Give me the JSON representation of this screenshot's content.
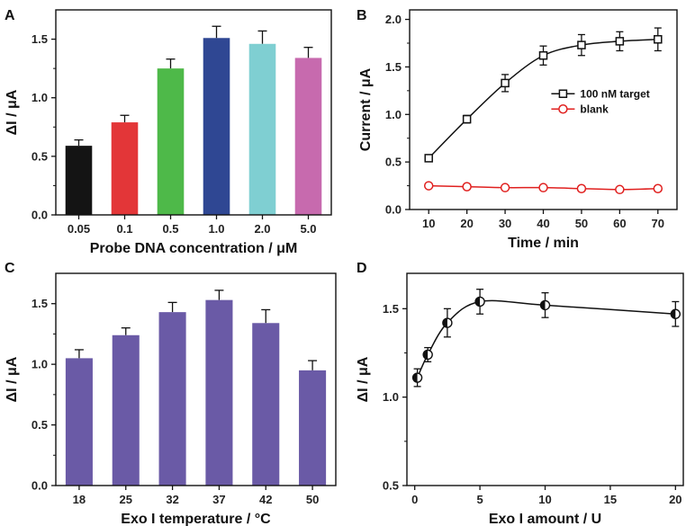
{
  "chart_data": [
    {
      "panel": "A",
      "type": "bar",
      "xlabel": "Probe DNA concentration / μM",
      "ylabel": "ΔI / μA",
      "categories": [
        "0.05",
        "0.1",
        "0.5",
        "1.0",
        "2.0",
        "5.0"
      ],
      "values": [
        0.59,
        0.79,
        1.25,
        1.51,
        1.46,
        1.34
      ],
      "errors": [
        0.05,
        0.06,
        0.08,
        0.1,
        0.11,
        0.09
      ],
      "colors": [
        "#141414",
        "#e33638",
        "#4eb949",
        "#2f4793",
        "#7fcfd2",
        "#c76aae"
      ],
      "ylim": [
        0,
        1.75
      ],
      "yticks": [
        "0.0",
        "0.5",
        "1.0",
        "1.5"
      ]
    },
    {
      "panel": "B",
      "type": "line",
      "xlabel": "Time / min",
      "ylabel": "Current / μA",
      "x": [
        10,
        20,
        30,
        40,
        50,
        60,
        70
      ],
      "series": [
        {
          "name": "100 nM target",
          "values": [
            0.54,
            0.95,
            1.33,
            1.62,
            1.73,
            1.77,
            1.79
          ],
          "errors": [
            0.03,
            0.04,
            0.09,
            0.1,
            0.11,
            0.1,
            0.12
          ],
          "color": "#111111",
          "marker": "square"
        },
        {
          "name": "blank",
          "values": [
            0.25,
            0.24,
            0.23,
            0.23,
            0.22,
            0.21,
            0.22
          ],
          "errors": [
            0.02,
            0.02,
            0.02,
            0.02,
            0.02,
            0.02,
            0.02
          ],
          "color": "#e0201f",
          "marker": "circle"
        }
      ],
      "xlim": [
        5,
        75
      ],
      "ylim": [
        0,
        2.1
      ],
      "xticks": [
        "10",
        "20",
        "30",
        "40",
        "50",
        "60",
        "70"
      ],
      "yticks": [
        "0.0",
        "0.5",
        "1.0",
        "1.5",
        "2.0"
      ]
    },
    {
      "panel": "C",
      "type": "bar",
      "xlabel": "Exo I temperature / °C",
      "ylabel": "ΔI / μA",
      "categories": [
        "18",
        "25",
        "32",
        "37",
        "42",
        "50"
      ],
      "values": [
        1.05,
        1.24,
        1.43,
        1.53,
        1.34,
        0.95
      ],
      "errors": [
        0.07,
        0.06,
        0.08,
        0.08,
        0.11,
        0.08
      ],
      "colors": [
        "#6a5aa6",
        "#6a5aa6",
        "#6a5aa6",
        "#6a5aa6",
        "#6a5aa6",
        "#6a5aa6"
      ],
      "ylim": [
        0,
        1.75
      ],
      "yticks": [
        "0.0",
        "0.5",
        "1.0",
        "1.5"
      ]
    },
    {
      "panel": "D",
      "type": "scatter",
      "xlabel": "Exo I amount / U",
      "ylabel": "ΔI / μA",
      "x": [
        0.2,
        1,
        2.5,
        5,
        10,
        20
      ],
      "series": [
        {
          "name": "ΔI",
          "values": [
            1.11,
            1.24,
            1.42,
            1.54,
            1.52,
            1.47
          ],
          "errors": [
            0.05,
            0.04,
            0.08,
            0.07,
            0.07,
            0.07
          ],
          "color": "#111111",
          "marker": "half-circle"
        }
      ],
      "xlim": [
        -0.6,
        20.6
      ],
      "ylim": [
        0.5,
        1.7
      ],
      "xticks": [
        "0",
        "5",
        "10",
        "15",
        "20"
      ],
      "yticks": [
        "0.5",
        "1.0",
        "1.5"
      ]
    }
  ]
}
